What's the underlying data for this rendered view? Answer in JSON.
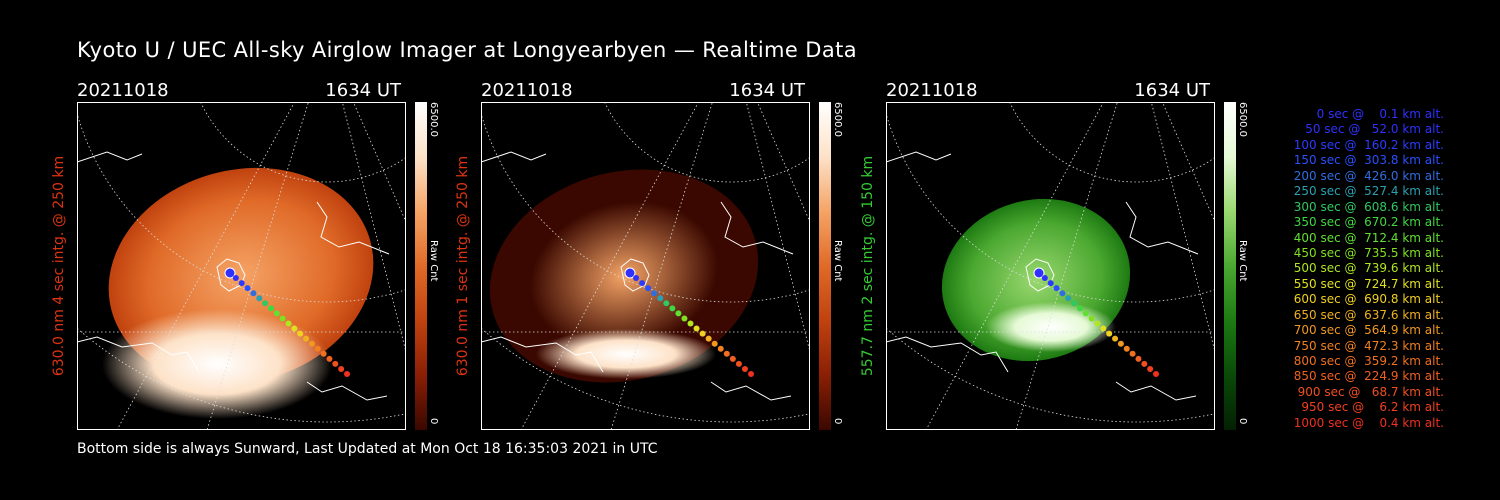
{
  "title": "Kyoto U / UEC All-sky Airglow Imager at Longyearbyen — Realtime Data",
  "panels": [
    {
      "date": "20211018",
      "time": "1634 UT",
      "label": "630.0 nm 4 sec intg. @ 250 km",
      "label_color": "#dd3311",
      "colorbar_max": "6500.0",
      "colorbar_min": "0",
      "colorbar_label": "Raw Cnt",
      "palette": [
        "#3a0800",
        "#8a1f05",
        "#c0420f",
        "#e06a28",
        "#f5a466",
        "#fde2c8",
        "#ffffff"
      ]
    },
    {
      "date": "20211018",
      "time": "1634 UT",
      "label": "630.0 nm 1 sec intg. @ 250 km",
      "label_color": "#dd3311",
      "colorbar_max": "6500.0",
      "colorbar_min": "0",
      "colorbar_label": "Raw Cnt",
      "palette": [
        "#3a0800",
        "#8a1f05",
        "#c0420f",
        "#e06a28",
        "#f5a466",
        "#fde2c8",
        "#ffffff"
      ]
    },
    {
      "date": "20211018",
      "time": "1634 UT",
      "label": "557.7 nm 2 sec intg. @ 150 km",
      "label_color": "#33cc33",
      "colorbar_max": "6500.0",
      "colorbar_min": "0",
      "colorbar_label": "Raw Cnt",
      "palette": [
        "#032003",
        "#0a4a08",
        "#1d7a12",
        "#4ba830",
        "#9ad870",
        "#e6fad6",
        "#ffffff"
      ]
    }
  ],
  "footer": "Bottom side is always Sunward, Last Updated at Mon Oct 18 16:35:03 2021 in UTC",
  "trajectory_legend": [
    {
      "text": "   0 sec @    0.1 km alt.",
      "color": "#3030ff"
    },
    {
      "text": "  50 sec @   52.0 km alt.",
      "color": "#3030ff"
    },
    {
      "text": " 100 sec @  160.2 km alt.",
      "color": "#2a3cff"
    },
    {
      "text": " 150 sec @  303.8 km alt.",
      "color": "#2a50ff"
    },
    {
      "text": " 200 sec @  426.0 km alt.",
      "color": "#2f6ee0"
    },
    {
      "text": " 250 sec @  527.4 km alt.",
      "color": "#2aa0b0"
    },
    {
      "text": " 300 sec @  608.6 km alt.",
      "color": "#30c860"
    },
    {
      "text": " 350 sec @  670.2 km alt.",
      "color": "#40d840"
    },
    {
      "text": " 400 sec @  712.4 km alt.",
      "color": "#60e030"
    },
    {
      "text": " 450 sec @  735.5 km alt.",
      "color": "#80e020"
    },
    {
      "text": " 500 sec @  739.6 km alt.",
      "color": "#b0e620"
    },
    {
      "text": " 550 sec @  724.7 km alt.",
      "color": "#e0e020"
    },
    {
      "text": " 600 sec @  690.8 km alt.",
      "color": "#f0d020"
    },
    {
      "text": " 650 sec @  637.6 km alt.",
      "color": "#f0b020"
    },
    {
      "text": " 700 sec @  564.9 km alt.",
      "color": "#f09820"
    },
    {
      "text": " 750 sec @  472.3 km alt.",
      "color": "#f08020"
    },
    {
      "text": " 800 sec @  359.2 km alt.",
      "color": "#f07020"
    },
    {
      "text": " 850 sec @  224.9 km alt.",
      "color": "#f06020"
    },
    {
      "text": " 900 sec @   68.7 km alt.",
      "color": "#f05020"
    },
    {
      "text": " 950 sec @    6.2 km alt.",
      "color": "#f04020"
    },
    {
      "text": "1000 sec @    0.4 km alt.",
      "color": "#f03020"
    }
  ]
}
